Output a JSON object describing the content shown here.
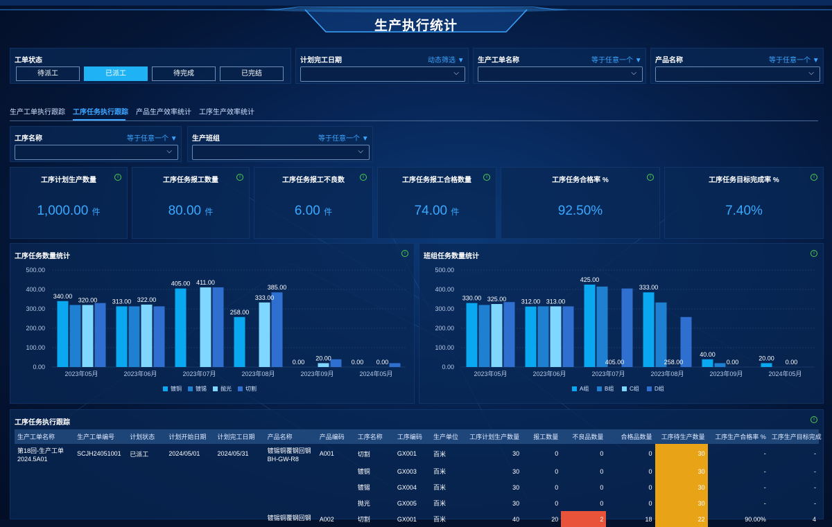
{
  "page": {
    "title": "生产执行统计"
  },
  "filters": {
    "status_label": "工单状态",
    "status_buttons": [
      "待派工",
      "已派工",
      "待完成",
      "已完结"
    ],
    "active_status": "已派工",
    "plan_date_label": "计划完工日期",
    "plan_date_link": "动态筛选",
    "work_order_label": "生产工单名称",
    "work_order_link": "等于任意一个",
    "product_label": "产品名称",
    "product_link": "等于任意一个"
  },
  "tabs": [
    "生产工单执行跟踪",
    "工序任务执行跟踪",
    "产品生产效率统计",
    "工序生产效率统计"
  ],
  "active_tab": "工序任务执行跟踪",
  "sub_filters": {
    "process_label": "工序名称",
    "process_link": "等于任意一个",
    "team_label": "生产班组",
    "team_link": "等于任意一个"
  },
  "kpis": [
    {
      "title": "工序计划生产数量",
      "value": "1,000.00",
      "unit": "件"
    },
    {
      "title": "工序任务报工数量",
      "value": "80.00",
      "unit": "件"
    },
    {
      "title": "工序任务报工不良数",
      "value": "6.00",
      "unit": "件"
    },
    {
      "title": "工序任务报工合格数量",
      "value": "74.00",
      "unit": "件"
    },
    {
      "title": "工序任务合格率 %",
      "value": "92.50%",
      "unit": ""
    },
    {
      "title": "工序任务目标完成率 %",
      "value": "7.40%",
      "unit": ""
    }
  ],
  "colors": {
    "s1": "#0aa8f0",
    "s2": "#1f7fd1",
    "s3": "#7fd6ff",
    "s4": "#2f6fcf",
    "highlight": "#e8a317",
    "alert": "#e8533a",
    "accent": "#3da5ff"
  },
  "chart_data": [
    {
      "type": "bar",
      "title": "工序任务数量统计",
      "categories": [
        "2023年05月",
        "2023年06月",
        "2023年07月",
        "2023年08月",
        "2023年09月",
        "2024年05月"
      ],
      "ylim": [
        0,
        500
      ],
      "yticks": [
        "0.00",
        "100.00",
        "200.00",
        "300.00",
        "400.00",
        "500.00"
      ],
      "legend_position": "bottom",
      "grid": true,
      "series": [
        {
          "name": "镀铜",
          "values": [
            340,
            313,
            405,
            258,
            0,
            0
          ]
        },
        {
          "name": "镀锡",
          "values": [
            320,
            313,
            0,
            0,
            0,
            0
          ]
        },
        {
          "name": "抛光",
          "values": [
            320,
            322,
            411,
            333,
            20,
            0
          ]
        },
        {
          "name": "切割",
          "values": [
            330,
            313,
            411,
            385,
            40,
            20
          ]
        }
      ],
      "data_labels": [
        [
          "340.00",
          "320.00"
        ],
        [
          "313.00",
          "322.00"
        ],
        [
          "405.00",
          "411.00"
        ],
        [
          "258.00",
          "333.00",
          "385.00"
        ],
        [
          "0.00",
          "20.00"
        ],
        [
          "0.00",
          "0.00"
        ]
      ]
    },
    {
      "type": "bar",
      "title": "班组任务数量统计",
      "categories": [
        "2023年05月",
        "2023年06月",
        "2023年07月",
        "2023年08月",
        "2023年09月",
        "2024年05月"
      ],
      "ylim": [
        0,
        500
      ],
      "yticks": [
        "0.00",
        "100.00",
        "200.00",
        "300.00",
        "400.00",
        "500.00"
      ],
      "legend_position": "bottom",
      "grid": true,
      "series": [
        {
          "name": "A组",
          "values": [
            330,
            312,
            425,
            385,
            40,
            20
          ]
        },
        {
          "name": "B组",
          "values": [
            320,
            313,
            415,
            333,
            20,
            0
          ]
        },
        {
          "name": "C组",
          "values": [
            325,
            313,
            0,
            0,
            0,
            0
          ]
        },
        {
          "name": "D组",
          "values": [
            335,
            313,
            405,
            258,
            0,
            0
          ]
        }
      ],
      "data_labels": [
        [
          "330.00",
          "325.00"
        ],
        [
          "312.00",
          "313.00"
        ],
        [
          "425.00",
          "405.00"
        ],
        [
          "333.00",
          "258.00"
        ],
        [
          "40.00",
          "0.00"
        ],
        [
          "20.00",
          "0.00"
        ]
      ]
    }
  ],
  "table": {
    "title": "工序任务执行跟踪",
    "headers": [
      "生产工单名称",
      "生产工单编号",
      "计划状态",
      "计划开始日期",
      "计划完工日期",
      "产品名称",
      "产品编码",
      "工序名称",
      "工序编码",
      "生产单位",
      "工序计划生产数量",
      "报工数量",
      "不良品数量",
      "合格品数量",
      "工序待生产数量",
      "工序生产合格率 %",
      "工序生产目标完成"
    ],
    "rows": [
      [
        "第18回-生产工单 2024.5A01",
        "SCJH24051001",
        "已派工",
        "2024/05/01",
        "2024/05/31",
        "镀锡铜覆钢回钢 BH-GW-R8",
        "A001",
        "切割",
        "GX001",
        "百米",
        "30",
        "0",
        "0",
        "0",
        "30",
        "-",
        "-"
      ],
      [
        "",
        "",
        "",
        "",
        "",
        "",
        "",
        "镀铜",
        "GX003",
        "百米",
        "30",
        "0",
        "0",
        "0",
        "30",
        "-",
        "-"
      ],
      [
        "",
        "",
        "",
        "",
        "",
        "",
        "",
        "镀锡",
        "GX004",
        "百米",
        "30",
        "0",
        "0",
        "0",
        "30",
        "-",
        "-"
      ],
      [
        "",
        "",
        "",
        "",
        "",
        "",
        "",
        "抛光",
        "GX005",
        "百米",
        "30",
        "0",
        "0",
        "0",
        "30",
        "-",
        "-"
      ],
      [
        "",
        "",
        "",
        "",
        "",
        "镀锡铜覆钢回钢",
        "A002",
        "切割",
        "GX001",
        "百米",
        "40",
        "20",
        "2",
        "18",
        "22",
        "90.00%",
        "4"
      ]
    ]
  }
}
